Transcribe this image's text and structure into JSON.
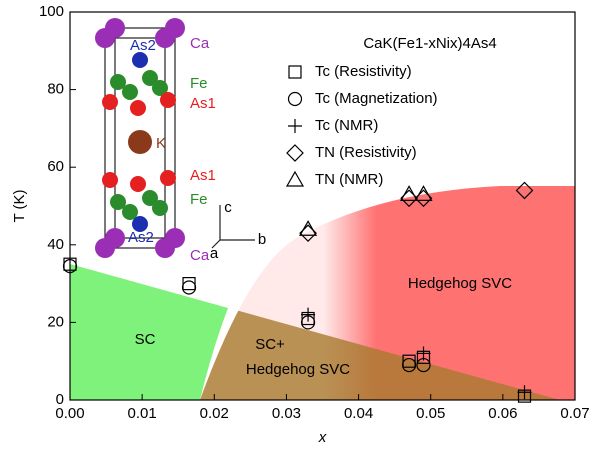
{
  "chart_data": {
    "type": "scatter",
    "title": "CaK(Fe1-xNix)4As4",
    "x_label": "x",
    "y_label": "T (K)",
    "xlim": [
      0,
      0.07
    ],
    "ylim": [
      0,
      100
    ],
    "xticks": [
      {
        "value": 0,
        "label": "0.00"
      },
      0.01,
      0.02,
      0.03,
      0.04,
      0.05,
      0.06,
      0.07
    ],
    "yticks": [
      0,
      20,
      40,
      60,
      80,
      100
    ],
    "series": [
      {
        "name": "Tc (Resistivity)",
        "marker": "square",
        "color": "#000000",
        "x": [
          0,
          0.0165,
          0.033,
          0.047,
          0.049,
          0.063
        ],
        "values": [
          35,
          30,
          21,
          10,
          11,
          1
        ]
      },
      {
        "name": "Tc (Magnetization)",
        "marker": "circle",
        "color": "#000000",
        "x": [
          0,
          0.0165,
          0.033,
          0.047,
          0.049
        ],
        "values": [
          34.5,
          29,
          20,
          9,
          9
        ]
      },
      {
        "name": "Tc (NMR)",
        "marker": "plus",
        "color": "#000000",
        "x": [
          0.033,
          0.049,
          0.063
        ],
        "values": [
          22,
          12,
          2
        ]
      },
      {
        "name": "TN (Resistivity)",
        "marker": "diamond",
        "color": "#000000",
        "x": [
          0.033,
          0.047,
          0.049,
          0.063
        ],
        "values": [
          43,
          52,
          52,
          54
        ]
      },
      {
        "name": "TN (NMR)",
        "marker": "triangle",
        "color": "#000000",
        "x": [
          0.033,
          0.047,
          0.049
        ],
        "values": [
          44,
          53,
          53
        ]
      }
    ],
    "annotations": [
      "SC",
      "SC+",
      "Hedgehog SVC",
      "Hedgehog SVC"
    ],
    "inset_labels": [
      "As2",
      "Ca",
      "Fe",
      "As1",
      "K",
      "As1",
      "Fe",
      "As2",
      "Ca",
      "c",
      "b",
      "a"
    ]
  }
}
